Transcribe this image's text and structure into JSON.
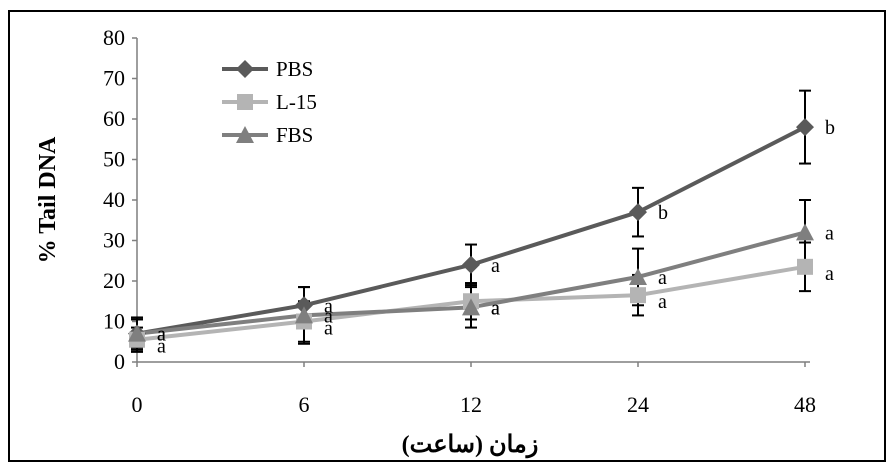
{
  "chart_data": {
    "type": "line",
    "xlabel": "زمان (ساعت)",
    "ylabel": "% Tail DNA",
    "categories": [
      "0",
      "6",
      "12",
      "24",
      "48"
    ],
    "y_ticks": [
      "0",
      "10",
      "20",
      "30",
      "40",
      "50",
      "60",
      "70",
      "80"
    ],
    "ylim": [
      0,
      80
    ],
    "grid": false,
    "legend_position": "top-left",
    "series": [
      {
        "name": "PBS",
        "color": "#5a5a5a",
        "marker": "diamond",
        "values": [
          7,
          14,
          24,
          37,
          58
        ],
        "errors": [
          4,
          4.5,
          5,
          6,
          9
        ],
        "labels": [
          "a",
          "a",
          "a",
          "b",
          "b"
        ]
      },
      {
        "name": "L-15",
        "color": "#b4b4b4",
        "marker": "square",
        "values": [
          5.5,
          10,
          15,
          16.5,
          23.5
        ],
        "errors": [
          3,
          5,
          4.5,
          5,
          6
        ],
        "labels": [
          "a",
          "a",
          "a",
          "a",
          "a"
        ]
      },
      {
        "name": "FBS",
        "color": "#7f7f7f",
        "marker": "triangle",
        "values": [
          7,
          11.5,
          13.5,
          21,
          32
        ],
        "errors": [
          3.5,
          7,
          5,
          7,
          8
        ],
        "labels": [
          "a",
          "a",
          "a",
          "a",
          "a"
        ]
      }
    ]
  }
}
